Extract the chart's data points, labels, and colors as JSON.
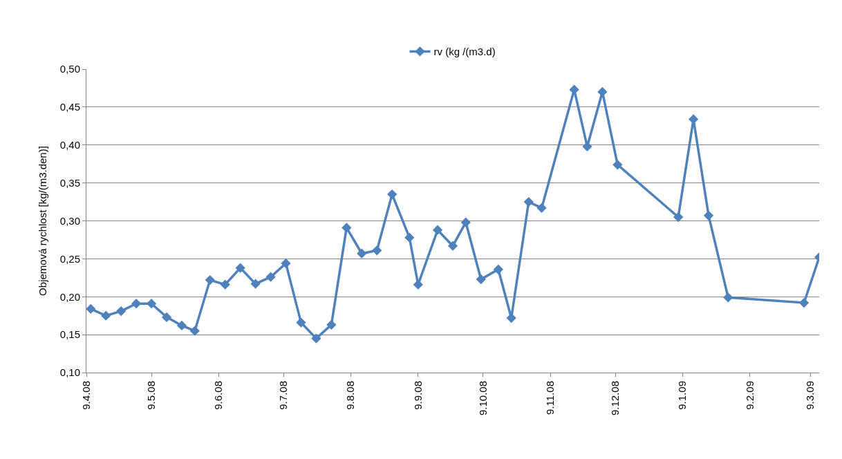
{
  "chart_data": {
    "type": "line",
    "ylabel": "Objemová rychlost [kg/(m3.den)]",
    "x": [
      "2008-04-11",
      "2008-04-18",
      "2008-04-25",
      "2008-05-02",
      "2008-05-09",
      "2008-05-16",
      "2008-05-23",
      "2008-05-29",
      "2008-06-05",
      "2008-06-12",
      "2008-06-19",
      "2008-06-26",
      "2008-07-03",
      "2008-07-10",
      "2008-07-17",
      "2008-07-24",
      "2008-07-31",
      "2008-08-07",
      "2008-08-14",
      "2008-08-21",
      "2008-08-28",
      "2008-09-05",
      "2008-09-09",
      "2008-09-18",
      "2008-09-25",
      "2008-10-01",
      "2008-10-08",
      "2008-10-16",
      "2008-10-22",
      "2008-10-30",
      "2008-11-05",
      "2008-11-20",
      "2008-11-26",
      "2008-12-03",
      "2008-12-10",
      "2009-01-07",
      "2009-01-14",
      "2009-01-21",
      "2009-01-30",
      "2009-03-06",
      "2009-03-13"
    ],
    "series": [
      {
        "name": "rv (kg /(m3.d)",
        "color": "#4f81bd",
        "values": [
          0.184,
          0.175,
          0.181,
          0.191,
          0.191,
          0.173,
          0.162,
          0.155,
          0.222,
          0.216,
          0.238,
          0.217,
          0.226,
          0.244,
          0.166,
          0.145,
          0.163,
          0.291,
          0.257,
          0.261,
          0.335,
          0.278,
          0.216,
          0.288,
          0.267,
          0.298,
          0.223,
          0.236,
          0.172,
          0.325,
          0.317,
          0.473,
          0.398,
          0.47,
          0.374,
          0.305,
          0.434,
          0.307,
          0.199,
          0.192,
          0.252
        ]
      }
    ],
    "xlim": [
      "2008-04-09",
      "2009-03-13"
    ],
    "xticks": [
      {
        "value": "2008-04-09",
        "label": "9.4.08"
      },
      {
        "value": "2008-05-09",
        "label": "9.5.08"
      },
      {
        "value": "2008-06-09",
        "label": "9.6.08"
      },
      {
        "value": "2008-07-09",
        "label": "9.7.08"
      },
      {
        "value": "2008-08-09",
        "label": "9.8.08"
      },
      {
        "value": "2008-09-09",
        "label": "9.9.08"
      },
      {
        "value": "2008-10-09",
        "label": "9.10.08"
      },
      {
        "value": "2008-11-09",
        "label": "9.11.08"
      },
      {
        "value": "2008-12-09",
        "label": "9.12.08"
      },
      {
        "value": "2009-01-09",
        "label": "9.1.09"
      },
      {
        "value": "2009-02-09",
        "label": "9.2.09"
      },
      {
        "value": "2009-03-09",
        "label": "9.3.09"
      }
    ],
    "ylim": [
      0.1,
      0.5
    ],
    "yticks": [
      {
        "value": 0.1,
        "label": "0,10"
      },
      {
        "value": 0.15,
        "label": "0,15"
      },
      {
        "value": 0.2,
        "label": "0,20"
      },
      {
        "value": 0.25,
        "label": "0,25"
      },
      {
        "value": 0.3,
        "label": "0,30"
      },
      {
        "value": 0.35,
        "label": "0,35"
      },
      {
        "value": 0.4,
        "label": "0,40"
      },
      {
        "value": 0.45,
        "label": "0,45"
      },
      {
        "value": 0.5,
        "label": "0,50"
      }
    ],
    "grid": "y",
    "legend": "top",
    "marker": "diamond",
    "line_style": "solid"
  }
}
